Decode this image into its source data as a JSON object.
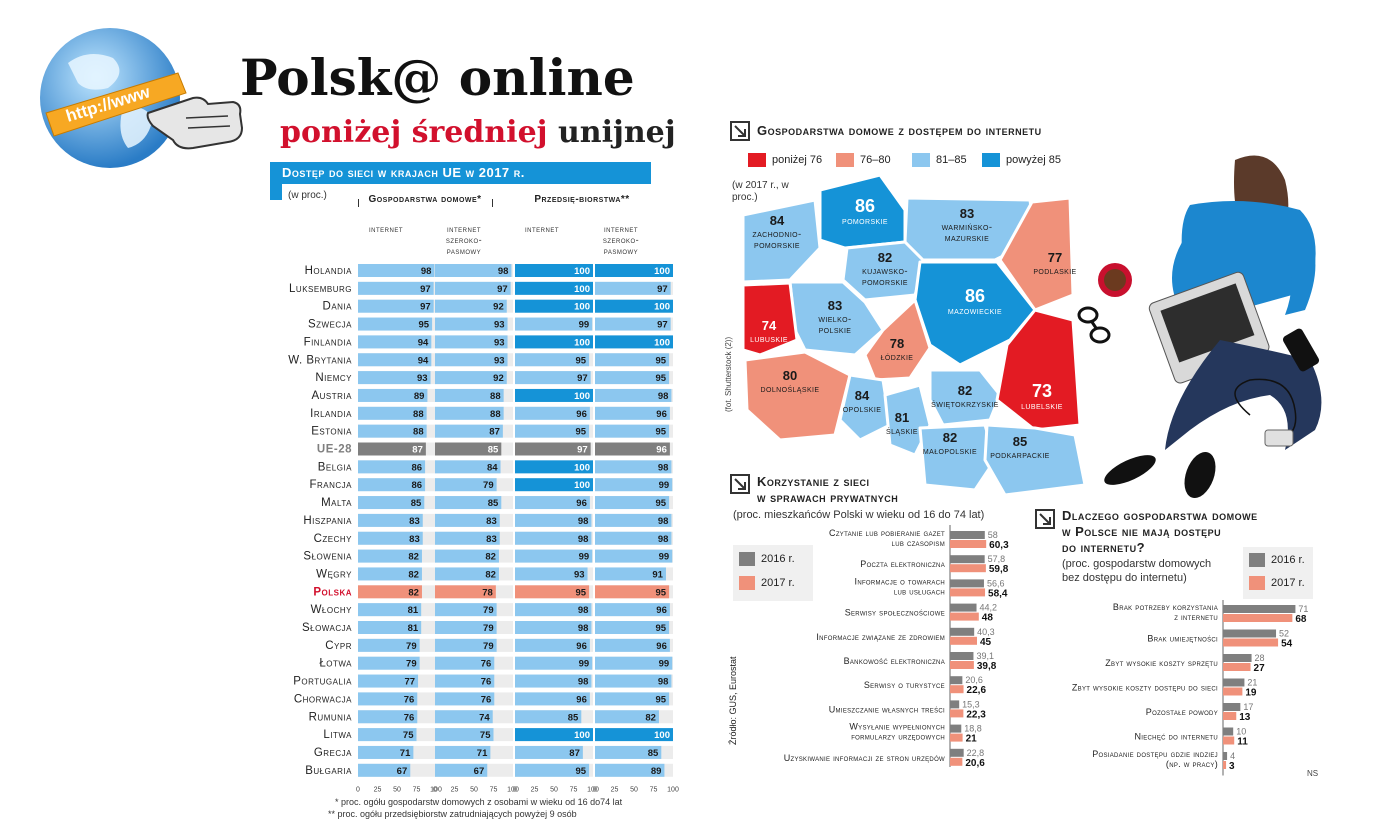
{
  "header": {
    "title": "Polsk@ online",
    "subtitle_red": "poniżej średniej",
    "subtitle_black": "unijnej",
    "logo_text": "http://www"
  },
  "left_chart": {
    "banner": "Dostęp do sieci w krajach UE w 2017 r.",
    "unit": "(w proc.)",
    "group1": "Gospodarstwa domowe*",
    "group2": "Przedsię-biorstwa**",
    "col_internet": "internet",
    "col_broadband": "internet szeroko-pasmowy",
    "ticks": [
      "0",
      "25",
      "50",
      "75",
      "100"
    ],
    "footnote1": "* proc. ogółu gospodarstw domowych z osobami w wieku od 16 do74 lat",
    "footnote2": "** proc. ogółu przedsiębiorstw zatrudniających powyżej 9 osób"
  },
  "chart_data": [
    {
      "type": "bar",
      "title": "Dostęp do sieci w krajach UE w 2017 r.",
      "unit": "(w proc.)",
      "categories": [
        "Holandia",
        "Luksemburg",
        "Dania",
        "Szwecja",
        "Finlandia",
        "W. Brytania",
        "Niemcy",
        "Austria",
        "Irlandia",
        "Estonia",
        "UE-28",
        "Belgia",
        "Francja",
        "Malta",
        "Hiszpania",
        "Czechy",
        "Słowenia",
        "Węgry",
        "Polska",
        "Włochy",
        "Słowacja",
        "Cypr",
        "Łotwa",
        "Portugalia",
        "Chorwacja",
        "Rumunia",
        "Litwa",
        "Grecja",
        "Bułgaria"
      ],
      "series": [
        {
          "name": "Gospodarstwa domowe – internet",
          "values": [
            98,
            97,
            97,
            95,
            94,
            94,
            93,
            89,
            88,
            88,
            87,
            86,
            86,
            85,
            83,
            83,
            82,
            82,
            82,
            81,
            81,
            79,
            79,
            77,
            76,
            76,
            75,
            71,
            67
          ]
        },
        {
          "name": "Gospodarstwa domowe – internet szerokopasmowy",
          "values": [
            98,
            97,
            92,
            93,
            93,
            93,
            92,
            88,
            88,
            87,
            85,
            84,
            79,
            85,
            83,
            83,
            82,
            82,
            78,
            79,
            79,
            79,
            76,
            76,
            76,
            74,
            75,
            71,
            67
          ]
        },
        {
          "name": "Przedsiębiorstwa – internet",
          "values": [
            100,
            100,
            100,
            99,
            100,
            95,
            97,
            100,
            96,
            95,
            97,
            100,
            100,
            96,
            98,
            98,
            99,
            93,
            95,
            98,
            98,
            96,
            99,
            98,
            96,
            85,
            100,
            87,
            95
          ]
        },
        {
          "name": "Przedsiębiorstwa – internet szerokopasmowy",
          "values": [
            100,
            97,
            100,
            97,
            100,
            95,
            95,
            98,
            96,
            95,
            96,
            98,
            99,
            95,
            98,
            98,
            99,
            91,
            95,
            96,
            95,
            96,
            99,
            98,
            95,
            82,
            100,
            85,
            89
          ]
        }
      ],
      "highlight": {
        "UE-28": "#7f7f7f",
        "Polska": "#f0917a"
      },
      "ylim": [
        0,
        100
      ]
    },
    {
      "type": "bar",
      "title": "Korzystanie z sieci w sprawach prywatnych",
      "subtitle": "(proc. mieszkańców Polski w wieku od 16 do 74 lat)",
      "categories": [
        "Czytanie lub pobieranie gazet lub czasopism",
        "Poczta elektroniczna",
        "Informacje o towarach lub usługach",
        "Serwisy społecznościowe",
        "Informacje związane ze zdrowiem",
        "Bankowość elektroniczna",
        "Serwisy o turystyce",
        "Umieszczanie własnych treści",
        "Wysyłanie wypełnionych formularzy urzędowych",
        "Uzyskiwanie informacji ze stron urzędów"
      ],
      "series": [
        {
          "name": "2016 r.",
          "values": [
            58,
            57.8,
            56.6,
            44.2,
            40.3,
            39.1,
            20.6,
            15.3,
            18.8,
            22.8
          ]
        },
        {
          "name": "2017 r.",
          "values": [
            60.3,
            59.8,
            58.4,
            48,
            45,
            39.8,
            22.6,
            22.3,
            21,
            20.6
          ]
        }
      ]
    },
    {
      "type": "bar",
      "title": "Dlaczego gospodarstwa domowe w Polsce nie mają dostępu do internetu?",
      "subtitle": "(proc. gospodarstw domowych bez dostępu do internetu)",
      "categories": [
        "Brak potrzeby korzystania z internetu",
        "Brak umiejętności",
        "Zbyt wysokie koszty sprzętu",
        "Zbyt wysokie koszty dostępu do sieci",
        "Pozostałe powody",
        "Niechęć do internetu",
        "Posiadanie dostępu gdzie indziej (np. w pracy)"
      ],
      "series": [
        {
          "name": "2016 r.",
          "values": [
            71,
            52,
            28,
            21,
            17,
            10,
            4
          ]
        },
        {
          "name": "2017 r.",
          "values": [
            68,
            54,
            27,
            19,
            13,
            11,
            3
          ]
        }
      ]
    },
    {
      "type": "map",
      "title": "Gospodarstwa domowe z dostępem do internetu",
      "subtitle": "(w 2017 r., w proc.)",
      "legend": [
        "poniżej 76",
        "76–80",
        "81–85",
        "powyżej 85"
      ],
      "regions": [
        {
          "name": "zachodnio-pomorskie",
          "value": 84
        },
        {
          "name": "pomorskie",
          "value": 86
        },
        {
          "name": "warmińsko-mazurskie",
          "value": 83
        },
        {
          "name": "kujawsko-pomorskie",
          "value": 82
        },
        {
          "name": "podlaskie",
          "value": 77
        },
        {
          "name": "wielko-polskie",
          "value": 83
        },
        {
          "name": "mazowieckie",
          "value": 86
        },
        {
          "name": "lubuskie",
          "value": 74
        },
        {
          "name": "łódzkie",
          "value": 78
        },
        {
          "name": "dolnośląskie",
          "value": 80
        },
        {
          "name": "opolskie",
          "value": 84
        },
        {
          "name": "śląskie",
          "value": 81
        },
        {
          "name": "świętokrzyskie",
          "value": 82
        },
        {
          "name": "lubelskie",
          "value": 73
        },
        {
          "name": "małopolskie",
          "value": 82
        },
        {
          "name": "podkarpackie",
          "value": 85
        }
      ]
    }
  ],
  "map_section": {
    "title": "Gospodarstwa domowe z dostępem do internetu",
    "legend": [
      {
        "label": "poniżej 76",
        "color": "#e31b23"
      },
      {
        "label": "76–80",
        "color": "#f0917a"
      },
      {
        "label": "81–85",
        "color": "#8cc7ef"
      },
      {
        "label": "powyżej 85",
        "color": "#1593d7"
      }
    ],
    "note": "(w 2017 r., w proc.)",
    "photo_credit": "(fot. Shutterstock (2))"
  },
  "private_section": {
    "title1": "Korzystanie z sieci",
    "title2": "w sprawach prywatnych",
    "subtitle": "(proc. mieszkańców Polski w wieku od 16 do 74 lat)",
    "legend_2016": "2016 r.",
    "legend_2017": "2017 r.",
    "source": "Źródło: GUS, Eurostat"
  },
  "why_section": {
    "title1": "Dlaczego gospodarstwa domowe",
    "title2": "w Polsce nie mają dostępu",
    "title3": "do internetu?",
    "subtitle1": "(proc. gospodarstw domowych",
    "subtitle2": "bez dostępu do internetu)",
    "legend_2016": "2016 r.",
    "legend_2017": "2017 r.",
    "signature": "NS"
  },
  "colors": {
    "gray_2016": "#7f7f7f",
    "salmon_2017": "#f0917a",
    "blue_light": "#8cc7ef",
    "blue_dark": "#1593d7",
    "red": "#e31b23"
  }
}
